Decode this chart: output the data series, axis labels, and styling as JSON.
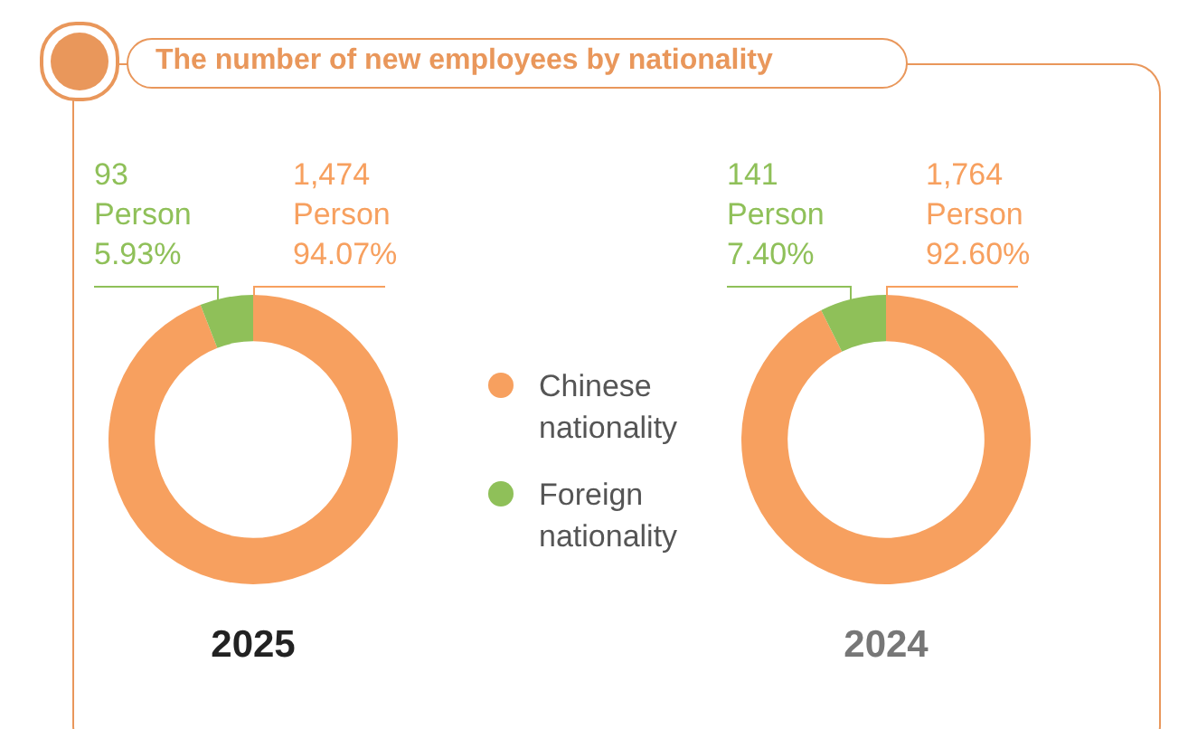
{
  "chart_data": [
    {
      "type": "donut",
      "title": "The number of new employees by nationality",
      "xlabel": "2025",
      "categories": [
        "Chinese nationality",
        "Foreign nationality"
      ],
      "values": [
        1474,
        93
      ],
      "colors": [
        "#f7a05f",
        "#8fc059"
      ],
      "value_labels": [
        "1,474\nPerson\n94.07%",
        "93\nPerson\n5.93%"
      ],
      "legend": "right"
    },
    {
      "type": "donut",
      "xlabel": "2024",
      "categories": [
        null,
        null
      ],
      "values": [
        1764,
        141
      ],
      "colors": [
        "#f7a05f",
        "#8fc059"
      ],
      "value_labels": [
        "1,764\nPerson\n92.60%",
        "141\nPerson\n7.40%"
      ]
    }
  ]
}
